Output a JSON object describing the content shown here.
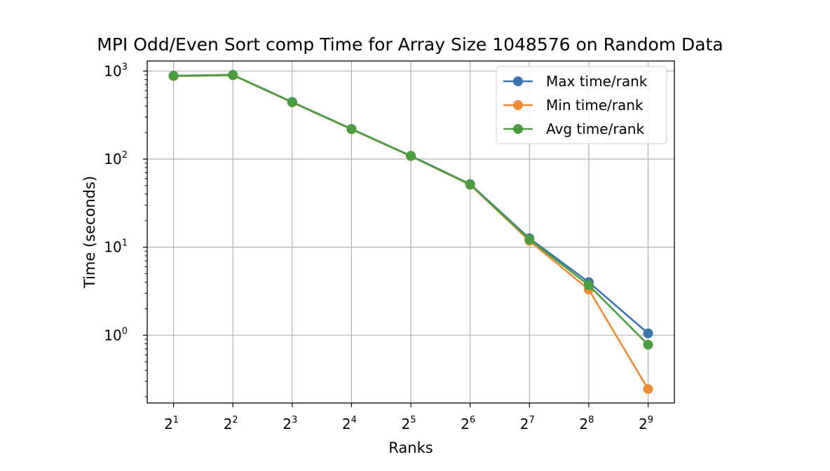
{
  "chart_data": {
    "type": "line",
    "title": "MPI Odd/Even Sort comp Time for Array Size 1048576 on Random Data",
    "xlabel": "Ranks",
    "ylabel": "Time (seconds)",
    "x_scale": "log2",
    "y_scale": "log10",
    "x": [
      2,
      4,
      8,
      16,
      32,
      64,
      128,
      256,
      512
    ],
    "x_tick_labels": [
      {
        "base": "2",
        "exp": "1"
      },
      {
        "base": "2",
        "exp": "2"
      },
      {
        "base": "2",
        "exp": "3"
      },
      {
        "base": "2",
        "exp": "4"
      },
      {
        "base": "2",
        "exp": "5"
      },
      {
        "base": "2",
        "exp": "6"
      },
      {
        "base": "2",
        "exp": "7"
      },
      {
        "base": "2",
        "exp": "8"
      },
      {
        "base": "2",
        "exp": "9"
      }
    ],
    "y_ticks": [
      1,
      10,
      100,
      1000
    ],
    "y_tick_labels": [
      {
        "base": "10",
        "exp": "0"
      },
      {
        "base": "10",
        "exp": "1"
      },
      {
        "base": "10",
        "exp": "2"
      },
      {
        "base": "10",
        "exp": "3"
      }
    ],
    "xlim": [
      1.47,
      696
    ],
    "ylim": [
      0.17,
      1300
    ],
    "grid": true,
    "legend_position": "top-right",
    "series": [
      {
        "name": "Max time/rank",
        "color": "#3a75b0",
        "values": [
          885,
          905,
          445,
          220,
          109,
          52,
          12.6,
          4.0,
          1.05
        ]
      },
      {
        "name": "Min time/rank",
        "color": "#f08a33",
        "values": [
          875,
          895,
          440,
          218,
          108,
          51,
          11.8,
          3.3,
          0.245
        ]
      },
      {
        "name": "Avg time/rank",
        "color": "#4b9e3f",
        "values": [
          880,
          900,
          443,
          219,
          108.5,
          51.5,
          12.2,
          3.7,
          0.78
        ]
      }
    ]
  }
}
